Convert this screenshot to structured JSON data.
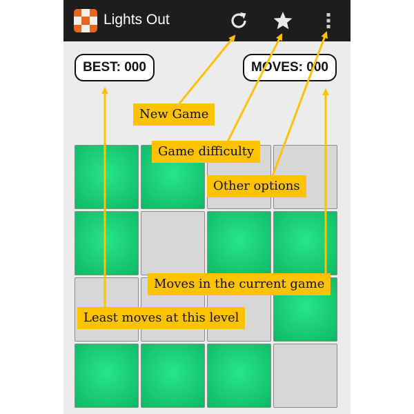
{
  "appbar": {
    "title": "Lights Out",
    "icons": {
      "new_game": "refresh-icon",
      "difficulty": "star-icon",
      "menu": "more-vertical-icon"
    }
  },
  "scores": {
    "best_label": "BEST: 000",
    "moves_label": "MOVES: 000"
  },
  "board": {
    "rows": [
      [
        true,
        true,
        false,
        false
      ],
      [
        true,
        false,
        true,
        true
      ],
      [
        false,
        false,
        false,
        true
      ],
      [
        true,
        true,
        true,
        false
      ]
    ]
  },
  "callouts": {
    "new_game": "New Game",
    "difficulty": "Game difficulty",
    "other_options": "Other options",
    "moves": "Moves in the current game",
    "least_moves": "Least moves at this level"
  },
  "colors": {
    "light_on": "#1ed07a",
    "light_off": "#d7d7d7",
    "callout": "#ffc200",
    "appbar": "#1d1d1d"
  }
}
